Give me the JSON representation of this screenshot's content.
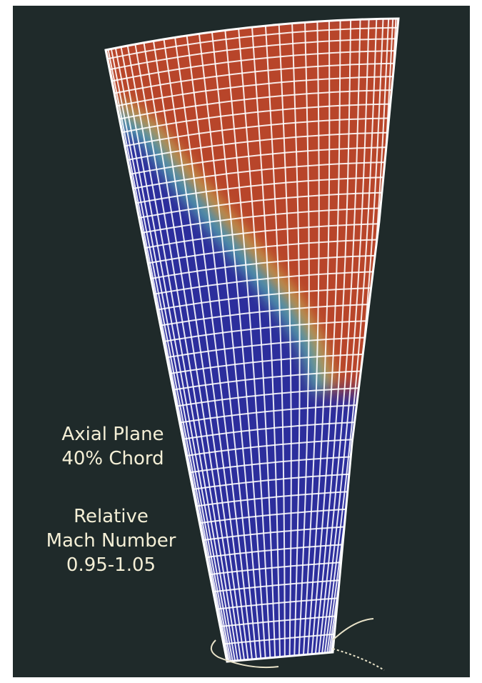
{
  "labels": {
    "plane_line1": "Axial Plane",
    "plane_line2": "40% Chord",
    "quantity_line1": "Relative",
    "quantity_line2": "Mach Number",
    "quantity_line3": "0.95-1.05"
  },
  "colors": {
    "background": "#1f2a2a",
    "high_mach": "#b8452a",
    "low_mach": "#2c2e9c",
    "transition": "#3fb0c8",
    "grid_lines": "#ffffff",
    "text": "#f4efd6"
  }
}
